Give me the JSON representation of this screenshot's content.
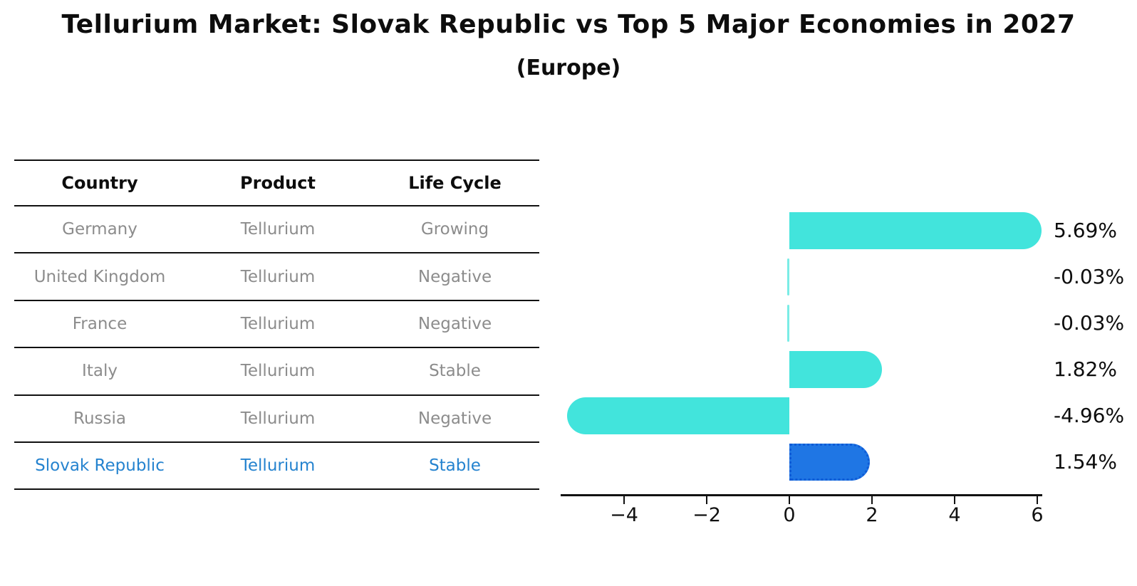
{
  "title": "Tellurium Market: Slovak Republic vs Top 5 Major Economies in 2027",
  "subtitle": "(Europe)",
  "table": {
    "headers": [
      "Country",
      "Product",
      "Life Cycle"
    ],
    "rows": [
      {
        "country": "Germany",
        "product": "Tellurium",
        "life_cycle": "Growing",
        "highlight": false
      },
      {
        "country": "United Kingdom",
        "product": "Tellurium",
        "life_cycle": "Negative",
        "highlight": false
      },
      {
        "country": "France",
        "product": "Tellurium",
        "life_cycle": "Negative",
        "highlight": false
      },
      {
        "country": "Italy",
        "product": "Tellurium",
        "life_cycle": "Stable",
        "highlight": false
      },
      {
        "country": "Russia",
        "product": "Tellurium",
        "life_cycle": "Negative",
        "highlight": false
      },
      {
        "country": "Slovak Republic",
        "product": "Tellurium",
        "life_cycle": "Stable",
        "highlight": true
      }
    ]
  },
  "chart_data": {
    "type": "bar",
    "orientation": "horizontal",
    "title": "Tellurium Market: Slovak Republic vs Top 5 Major Economies in 2027 (Europe)",
    "categories": [
      "Germany",
      "United Kingdom",
      "France",
      "Italy",
      "Russia",
      "Slovak Republic"
    ],
    "values": [
      5.69,
      -0.03,
      -0.03,
      1.82,
      -4.96,
      1.54
    ],
    "value_labels": [
      "5.69%",
      "-0.03%",
      "-0.03%",
      "1.82%",
      "-4.96%",
      "1.54%"
    ],
    "x_ticks": [
      {
        "value": -4,
        "label": "−4"
      },
      {
        "value": -2,
        "label": "−2"
      },
      {
        "value": 0,
        "label": "0"
      },
      {
        "value": 2,
        "label": "2"
      },
      {
        "value": 4,
        "label": "4"
      },
      {
        "value": 6,
        "label": "6"
      }
    ],
    "xlim": [
      -5.5,
      6.1
    ],
    "grid": false,
    "legend": "none",
    "bar_color": "#42e4dc",
    "highlight_index": 5,
    "highlight_color": "#1f76e4",
    "highlight_border_color": "#0f5bd6"
  },
  "colors": {
    "row_text": "#8c8c8c",
    "highlight_text": "#2583cf",
    "axis": "#111111",
    "label_text": "#0d0d0d"
  }
}
